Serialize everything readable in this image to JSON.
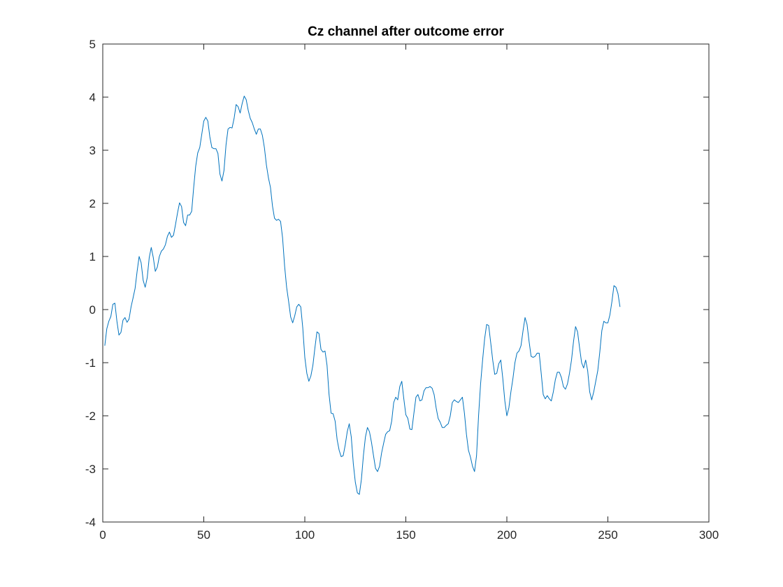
{
  "chart_data": {
    "type": "line",
    "title": "Cz channel after outcome error",
    "xlabel": "",
    "ylabel": "",
    "xlim": [
      0,
      300
    ],
    "ylim": [
      -4,
      5
    ],
    "xticks": [
      0,
      50,
      100,
      150,
      200,
      250,
      300
    ],
    "yticks": [
      -4,
      -3,
      -2,
      -1,
      0,
      1,
      2,
      3,
      4,
      5
    ],
    "xtick_labels": [
      "0",
      "50",
      "100",
      "150",
      "200",
      "250",
      "300"
    ],
    "ytick_labels": [
      "-4",
      "-3",
      "-2",
      "-1",
      "0",
      "1",
      "2",
      "3",
      "4",
      "5"
    ],
    "grid": false,
    "legend": "none",
    "series": [
      {
        "color": "#0072bd",
        "x": [
          1,
          2,
          3,
          4,
          5,
          6,
          7,
          8,
          9,
          10,
          11,
          12,
          13,
          14,
          15,
          16,
          17,
          18,
          19,
          20,
          21,
          22,
          23,
          24,
          25,
          26,
          27,
          28,
          29,
          30,
          31,
          32,
          33,
          34,
          35,
          36,
          37,
          38,
          39,
          40,
          41,
          42,
          43,
          44,
          45,
          46,
          47,
          48,
          49,
          50,
          51,
          52,
          53,
          54,
          55,
          56,
          57,
          58,
          59,
          60,
          61,
          62,
          63,
          64,
          65,
          66,
          67,
          68,
          69,
          70,
          71,
          72,
          73,
          74,
          75,
          76,
          77,
          78,
          79,
          80,
          81,
          82,
          83,
          84,
          85,
          86,
          87,
          88,
          89,
          90,
          91,
          92,
          93,
          94,
          95,
          96,
          97,
          98,
          99,
          100,
          101,
          102,
          103,
          104,
          105,
          106,
          107,
          108,
          109,
          110,
          111,
          112,
          113,
          114,
          115,
          116,
          117,
          118,
          119,
          120,
          121,
          122,
          123,
          124,
          125,
          126,
          127,
          128,
          129,
          130,
          131,
          132,
          133,
          134,
          135,
          136,
          137,
          138,
          139,
          140,
          141,
          142,
          143,
          144,
          145,
          146,
          147,
          148,
          149,
          150,
          151,
          152,
          153,
          154,
          155,
          156,
          157,
          158,
          159,
          160,
          161,
          162,
          163,
          164,
          165,
          166,
          167,
          168,
          169,
          170,
          171,
          172,
          173,
          174,
          175,
          176,
          177,
          178,
          179,
          180,
          181,
          182,
          183,
          184,
          185,
          186,
          187,
          188,
          189,
          190,
          191,
          192,
          193,
          194,
          195,
          196,
          197,
          198,
          199,
          200,
          201,
          202,
          203,
          204,
          205,
          206,
          207,
          208,
          209,
          210,
          211,
          212,
          213,
          214,
          215,
          216,
          217,
          218,
          219,
          220,
          221,
          222,
          223,
          224,
          225,
          226,
          227,
          228,
          229,
          230,
          231,
          232,
          233,
          234,
          235,
          236,
          237,
          238,
          239,
          240,
          241,
          242,
          243,
          244,
          245,
          246,
          247,
          248,
          249,
          250,
          251,
          252,
          253,
          254,
          255,
          256
        ],
        "y": [
          -0.68,
          -0.36,
          -0.22,
          -0.13,
          0.1,
          0.12,
          -0.22,
          -0.48,
          -0.43,
          -0.2,
          -0.15,
          -0.24,
          -0.18,
          0.05,
          0.22,
          0.4,
          0.72,
          1.0,
          0.88,
          0.55,
          0.42,
          0.6,
          0.98,
          1.17,
          0.98,
          0.72,
          0.8,
          1.0,
          1.1,
          1.14,
          1.22,
          1.38,
          1.46,
          1.36,
          1.4,
          1.6,
          1.82,
          2.01,
          1.94,
          1.64,
          1.58,
          1.78,
          1.78,
          1.85,
          2.3,
          2.7,
          2.95,
          3.05,
          3.3,
          3.55,
          3.62,
          3.55,
          3.25,
          3.05,
          3.03,
          3.03,
          2.94,
          2.55,
          2.42,
          2.62,
          3.1,
          3.4,
          3.43,
          3.42,
          3.6,
          3.86,
          3.82,
          3.7,
          3.88,
          4.02,
          3.95,
          3.75,
          3.6,
          3.52,
          3.4,
          3.3,
          3.4,
          3.4,
          3.28,
          3.05,
          2.72,
          2.48,
          2.3,
          1.95,
          1.72,
          1.68,
          1.7,
          1.66,
          1.35,
          0.82,
          0.42,
          0.15,
          -0.14,
          -0.25,
          -0.12,
          0.05,
          0.1,
          0.05,
          -0.35,
          -0.9,
          -1.2,
          -1.35,
          -1.25,
          -1.05,
          -0.72,
          -0.42,
          -0.45,
          -0.75,
          -0.8,
          -0.78,
          -1.05,
          -1.6,
          -1.95,
          -1.96,
          -2.1,
          -2.45,
          -2.65,
          -2.77,
          -2.75,
          -2.55,
          -2.3,
          -2.15,
          -2.4,
          -2.9,
          -3.25,
          -3.45,
          -3.48,
          -3.2,
          -2.75,
          -2.4,
          -2.22,
          -2.3,
          -2.5,
          -2.75,
          -2.99,
          -3.05,
          -2.95,
          -2.7,
          -2.52,
          -2.35,
          -2.3,
          -2.28,
          -2.1,
          -1.75,
          -1.65,
          -1.7,
          -1.45,
          -1.35,
          -1.68,
          -1.98,
          -2.05,
          -2.25,
          -2.26,
          -1.95,
          -1.65,
          -1.6,
          -1.72,
          -1.7,
          -1.53,
          -1.47,
          -1.47,
          -1.45,
          -1.48,
          -1.6,
          -1.85,
          -2.05,
          -2.12,
          -2.22,
          -2.22,
          -2.18,
          -2.15,
          -2.0,
          -1.75,
          -1.7,
          -1.73,
          -1.75,
          -1.7,
          -1.65,
          -1.95,
          -2.35,
          -2.65,
          -2.78,
          -2.95,
          -3.05,
          -2.75,
          -2.0,
          -1.4,
          -0.95,
          -0.55,
          -0.28,
          -0.3,
          -0.62,
          -0.95,
          -1.22,
          -1.2,
          -1.02,
          -0.95,
          -1.3,
          -1.72,
          -2.0,
          -1.85,
          -1.55,
          -1.3,
          -1.0,
          -0.82,
          -0.78,
          -0.68,
          -0.4,
          -0.15,
          -0.28,
          -0.6,
          -0.88,
          -0.9,
          -0.88,
          -0.82,
          -0.82,
          -1.2,
          -1.6,
          -1.68,
          -1.62,
          -1.68,
          -1.72,
          -1.55,
          -1.32,
          -1.18,
          -1.18,
          -1.28,
          -1.45,
          -1.5,
          -1.4,
          -1.2,
          -0.95,
          -0.6,
          -0.32,
          -0.42,
          -0.72,
          -1.0,
          -1.1,
          -0.95,
          -1.15,
          -1.55,
          -1.7,
          -1.55,
          -1.35,
          -1.15,
          -0.8,
          -0.4,
          -0.22,
          -0.25,
          -0.25,
          -0.1,
          0.15,
          0.45,
          0.42,
          0.3,
          0.05
        ]
      }
    ]
  }
}
